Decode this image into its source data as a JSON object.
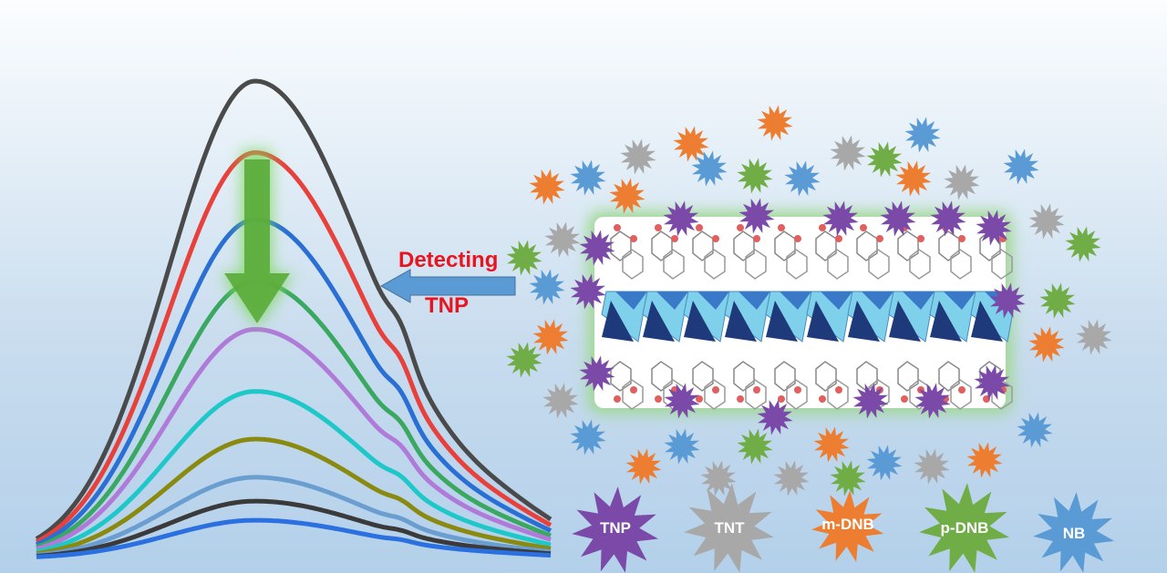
{
  "spectra": {
    "description_label": "fluorescence quenching spectra",
    "relative_intensities": [
      1.0,
      0.85,
      0.71,
      0.58,
      0.48,
      0.35,
      0.25,
      0.17,
      0.12,
      0.08
    ],
    "colors": [
      "#4a4a4a",
      "#e8413c",
      "#2a6fd4",
      "#3aa860",
      "#b07ad8",
      "#1fc8c8",
      "#8a8a10",
      "#6a9ed0",
      "#3a3a3a",
      "#2a70e0"
    ]
  },
  "arrow_label": {
    "line1": "Detecting",
    "line2": "TNP"
  },
  "legend": [
    {
      "label": "TNP",
      "color": "#7b4aa8"
    },
    {
      "label": "TNT",
      "color": "#a8a8a8"
    },
    {
      "label": "m-DNB",
      "color": "#ed7d31"
    },
    {
      "label": "p-DNB",
      "color": "#70ad47"
    },
    {
      "label": "NB",
      "color": "#5b9bd5"
    }
  ]
}
